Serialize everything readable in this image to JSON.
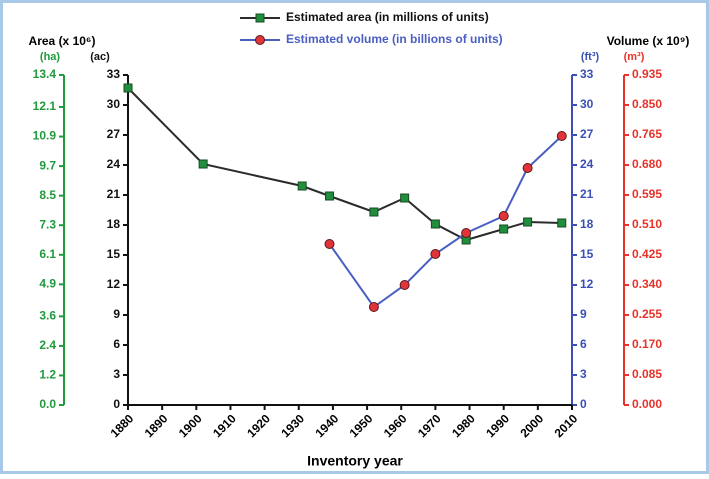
{
  "chart_data": {
    "type": "line",
    "y_title": "Area (x 10⁶)",
    "y2_title": "Volume (x 10⁹)",
    "x_title": "Inventory year",
    "x": [
      1880,
      1902,
      1931,
      1939,
      1952,
      1961,
      1970,
      1979,
      1990,
      1997,
      2007
    ],
    "xlim": [
      1880,
      2010
    ],
    "xticks": [
      1880,
      1890,
      1900,
      1910,
      1920,
      1930,
      1940,
      1950,
      1960,
      1970,
      1980,
      1990,
      2000,
      2010
    ],
    "series": [
      {
        "name": "Estimated area (in millions of units)",
        "color": "#2b2b2b",
        "marker_color": "#1f8f3e",
        "marker": "square",
        "axis": "y",
        "values": [
          31.7,
          24.1,
          21.9,
          20.9,
          19.3,
          20.7,
          18.1,
          16.5,
          17.6,
          18.3,
          18.2
        ]
      },
      {
        "name": "Estimated volume (in billions of units)",
        "color": "#4a5fc1",
        "marker_color": "#e0333a",
        "marker": "circle",
        "axis": "y2",
        "values": [
          null,
          null,
          null,
          16.1,
          9.8,
          12.0,
          15.1,
          17.2,
          18.9,
          23.7,
          26.9
        ]
      }
    ],
    "y_unit": "(ac)",
    "y_color": "#111111",
    "ylim": [
      0,
      33
    ],
    "yticks": [
      0,
      3,
      6,
      9,
      12,
      15,
      18,
      21,
      24,
      27,
      30,
      33
    ],
    "y2_unit": "(ft³)",
    "y2_color": "#3a4fb5",
    "y2lim": [
      0,
      33
    ],
    "y2ticks": [
      0,
      3,
      6,
      9,
      12,
      15,
      18,
      21,
      24,
      27,
      30,
      33
    ],
    "y3_unit": "(ha)",
    "y3_color": "#1f9a3c",
    "y3lim": [
      0,
      13.4
    ],
    "y3ticks": [
      {
        "value": 0,
        "label": "0.0"
      },
      1.2,
      2.4,
      3.6,
      4.9,
      6.1,
      7.3,
      8.5,
      9.7,
      10.9,
      12.1,
      13.4
    ],
    "y4_unit": "(m³)",
    "y4_color": "#e8322a",
    "y4lim": [
      0,
      0.935
    ],
    "y4ticks": [
      {
        "value": 0,
        "label": "0.000"
      },
      0.085,
      {
        "value": 0.17,
        "label": "0.170"
      },
      0.255,
      {
        "value": 0.34,
        "label": "0.340"
      },
      0.425,
      {
        "value": 0.51,
        "label": "0.510"
      },
      0.595,
      {
        "value": 0.68,
        "label": "0.680"
      },
      0.765,
      {
        "value": 0.85,
        "label": "0.850"
      },
      0.935
    ]
  }
}
